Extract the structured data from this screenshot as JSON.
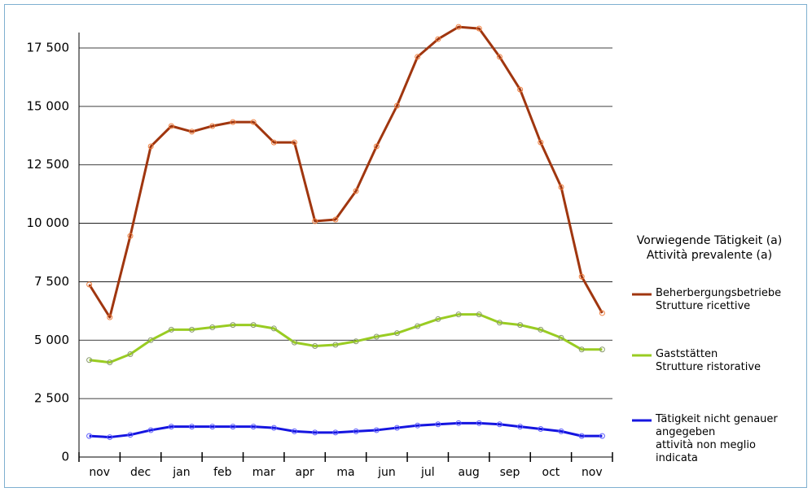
{
  "chart_data": {
    "type": "line",
    "categories": [
      "nov",
      null,
      "dec",
      null,
      "jan",
      null,
      "feb",
      null,
      "mar",
      null,
      "apr",
      null,
      "ma",
      null,
      "jun",
      null,
      "jul",
      null,
      "aug",
      null,
      "sep",
      null,
      "oct",
      null,
      "nov",
      null
    ],
    "series": [
      {
        "name": "Beherbergungsbetriebe\nStrutture ricettive",
        "color": "#a0360f",
        "values": [
          7380,
          5980,
          9460,
          13290,
          14160,
          13920,
          14160,
          14330,
          14330,
          13460,
          13460,
          10090,
          10160,
          11380,
          13290,
          15030,
          17120,
          17880,
          18400,
          18330,
          17120,
          15720,
          13460,
          11550,
          7720,
          6160
        ]
      },
      {
        "name": "Gaststätten\nStrutture ristorative",
        "color": "#99cc22",
        "values": [
          4150,
          4050,
          4400,
          5000,
          5450,
          5450,
          5550,
          5650,
          5650,
          5500,
          4900,
          4750,
          4800,
          4950,
          5150,
          5300,
          5600,
          5900,
          6100,
          6100,
          5750,
          5650,
          5450,
          5100,
          4600,
          4600
        ]
      },
      {
        "name": "Tätigkeit nicht genauer\nangegeben\nattività non meglio\nindicata",
        "color": "#1515e0",
        "values": [
          900,
          850,
          950,
          1150,
          1300,
          1300,
          1300,
          1300,
          1300,
          1250,
          1100,
          1050,
          1050,
          1100,
          1150,
          1250,
          1350,
          1400,
          1450,
          1450,
          1400,
          1300,
          1200,
          1100,
          900,
          900
        ]
      }
    ],
    "ylim": [
      0,
      18500
    ],
    "yticks": [
      0,
      {
        "value": 2500,
        "label": "2 500"
      },
      {
        "value": 5000,
        "label": "5 000"
      },
      {
        "value": 7500,
        "label": "7 500"
      },
      {
        "value": 10000,
        "label": "10 000"
      },
      {
        "value": 12500,
        "label": "12 500"
      },
      {
        "value": 15000,
        "label": "15 000"
      },
      {
        "value": 17500,
        "label": "17 500"
      }
    ],
    "grid": true,
    "legend_title": "Vorwiegende Tätigkeit (a)\nAttività prevalente (a)",
    "legend": "right"
  }
}
